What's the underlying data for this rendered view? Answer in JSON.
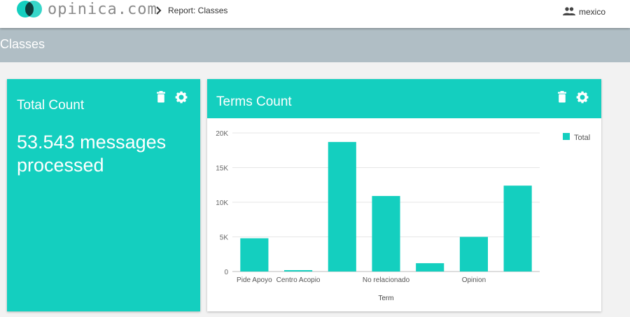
{
  "brand": {
    "name": "opinica.com"
  },
  "breadcrumb": {
    "label": "Report: Classes"
  },
  "user": {
    "name": "mexico"
  },
  "page": {
    "title": "Classes"
  },
  "total_card": {
    "title": "Total Count",
    "value": "53.543 messages processed"
  },
  "terms_card": {
    "title": "Terms Count"
  },
  "colors": {
    "accent": "#14cfbf",
    "section_bar": "#b0bec5"
  },
  "chart_data": {
    "type": "bar",
    "categories": [
      "Pide Apoyo",
      "Centro Acopio",
      "",
      "No relacionado",
      "",
      "Opinion",
      ""
    ],
    "series": [
      {
        "name": "Total",
        "values": [
          4800,
          200,
          18700,
          10900,
          1200,
          5000,
          12400
        ]
      }
    ],
    "xlabel": "Term",
    "ylabel": "",
    "ylim": [
      0,
      20000
    ],
    "yticks": [
      "0",
      "5K",
      "10K",
      "15K",
      "20K"
    ],
    "grid": true,
    "legend": "top-right"
  }
}
